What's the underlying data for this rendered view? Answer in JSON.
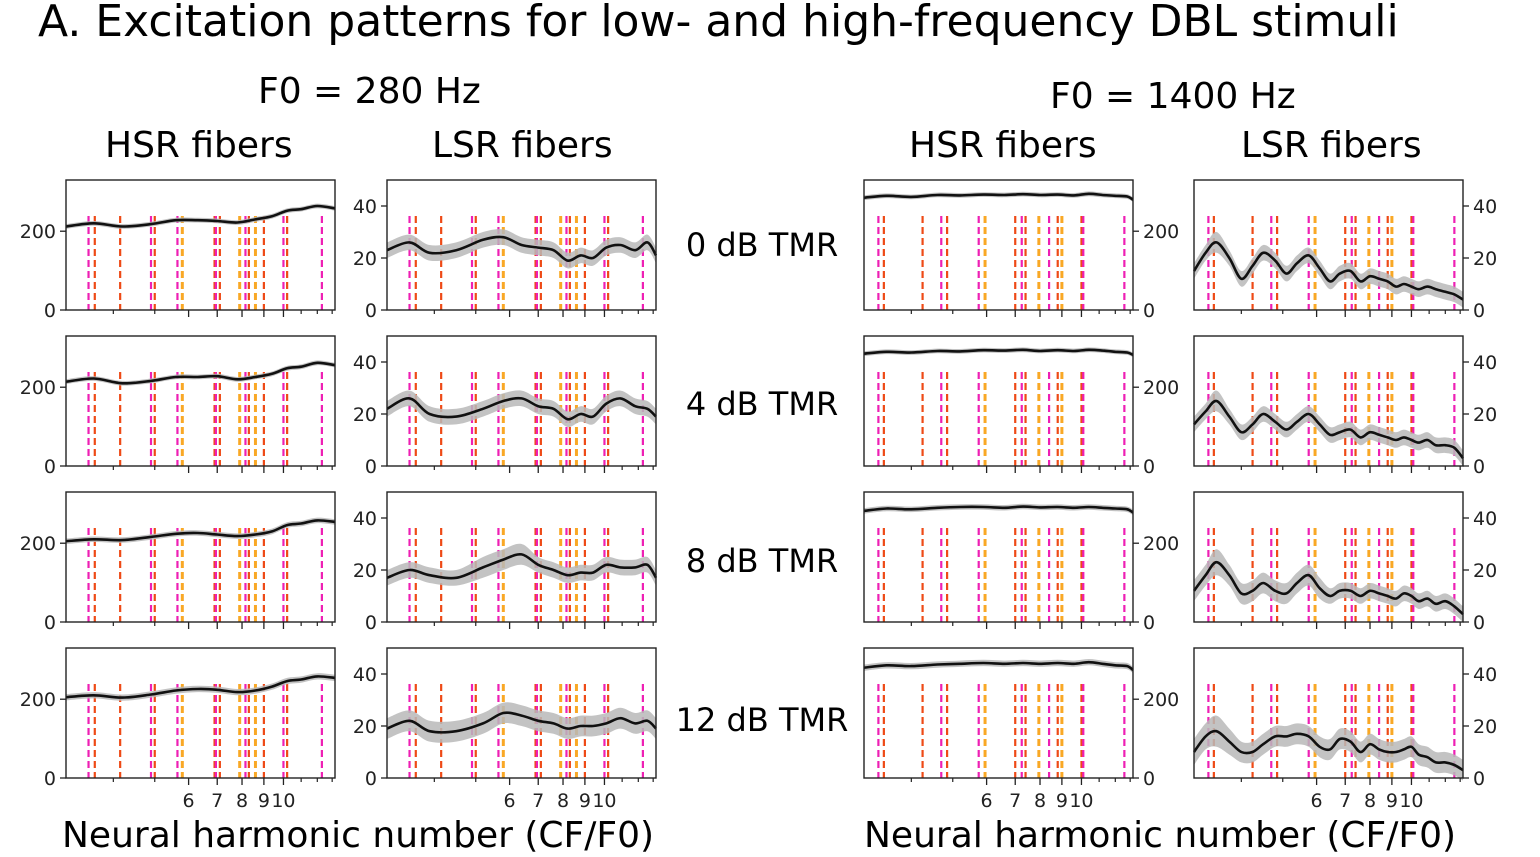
{
  "figure": {
    "title": "A. Excitation patterns for low- and high-frequency DBL stimuli",
    "groups": [
      {
        "f0_label": "F0 = 280 Hz",
        "hsr_label": "HSR fibers",
        "lsr_label": "LSR fibers",
        "xlabel": "Neural harmonic number (CF/F0)"
      },
      {
        "f0_label": "F0 = 1400 Hz",
        "hsr_label": "HSR fibers",
        "lsr_label": "LSR fibers",
        "xlabel": "Neural harmonic number (CF/F0)"
      }
    ],
    "rows": [
      "0 dB TMR",
      "4 dB TMR",
      "8 dB TMR",
      "12 dB TMR"
    ]
  },
  "chart_data": {
    "type": "line",
    "x_scale": "log",
    "x_domain": [
      3.1,
      13.2
    ],
    "x_tick_labels": [
      {
        "value": 6,
        "label": "6"
      },
      {
        "value": 7,
        "label": "7"
      },
      {
        "value": 8,
        "label": "8"
      },
      {
        "value": 9,
        "label": "9"
      },
      {
        "value": 10,
        "label": "10"
      }
    ],
    "hsr_axis": {
      "ylim": [
        0,
        330
      ],
      "ticks": [
        0,
        200
      ]
    },
    "lsr_axis": {
      "ylim": [
        0,
        50
      ],
      "ticks": [
        0,
        20,
        40
      ]
    },
    "marker_colors": {
      "target": "#ee1fb4",
      "masker": "#ee4a16",
      "shared": "#f9a825"
    },
    "harmonic_markers_280": {
      "target": [
        3.5,
        4.9,
        5.65,
        6.95,
        8.15,
        10.0,
        12.3
      ],
      "masker": [
        3.62,
        4.15,
        5.0,
        6.9,
        7.1,
        8.3,
        9.0,
        10.2
      ],
      "shared": [
        5.8,
        7.9,
        8.6
      ]
    },
    "harmonic_markers_1400": {
      "target": [
        3.35,
        4.7,
        5.75,
        7.25,
        8.4,
        10.1,
        12.6
      ],
      "masker": [
        3.45,
        4.25,
        4.85,
        7.0,
        7.4,
        8.8,
        10.0
      ],
      "shared": [
        5.95,
        7.95,
        9.0
      ]
    },
    "panels": [
      {
        "group": "F0 = 280 Hz",
        "fibers": "HSR",
        "row": "0 dB TMR",
        "x": [
          3.1,
          3.6,
          4.2,
          4.9,
          5.6,
          6.3,
          7.0,
          7.8,
          8.6,
          9.4,
          10.2,
          11.0,
          12.0,
          13.2
        ],
        "y": [
          212,
          220,
          212,
          218,
          228,
          228,
          226,
          222,
          230,
          238,
          252,
          256,
          264,
          258
        ],
        "band": [
          6,
          6,
          6,
          6,
          6,
          6,
          6,
          6,
          6,
          6,
          6,
          6,
          6,
          6
        ]
      },
      {
        "group": "F0 = 280 Hz",
        "fibers": "LSR",
        "row": "0 dB TMR",
        "x": [
          3.1,
          3.5,
          3.9,
          4.5,
          5.2,
          5.8,
          6.4,
          7.0,
          7.6,
          8.2,
          8.8,
          9.4,
          10.1,
          10.9,
          11.8,
          12.6,
          13.2
        ],
        "y": [
          23,
          26,
          22,
          23,
          27,
          28,
          25,
          24,
          23,
          19,
          21,
          20,
          24,
          25,
          23,
          26,
          21
        ],
        "band": [
          3,
          3,
          3,
          3,
          3,
          3,
          3,
          3,
          3,
          3,
          3,
          3,
          3,
          3,
          3,
          3,
          3
        ]
      },
      {
        "group": "F0 = 1400 Hz",
        "fibers": "HSR",
        "row": "0 dB TMR",
        "x": [
          3.1,
          3.5,
          4.0,
          4.6,
          5.2,
          5.9,
          6.6,
          7.3,
          8.0,
          8.8,
          9.6,
          10.4,
          11.2,
          12.0,
          12.8,
          13.2
        ],
        "y": [
          285,
          290,
          287,
          292,
          291,
          293,
          292,
          294,
          292,
          293,
          291,
          295,
          292,
          290,
          288,
          280
        ],
        "band": [
          6,
          6,
          6,
          6,
          6,
          6,
          6,
          6,
          6,
          6,
          6,
          6,
          6,
          6,
          6,
          6
        ]
      },
      {
        "group": "F0 = 1400 Hz",
        "fibers": "LSR",
        "row": "0 dB TMR",
        "x": [
          3.1,
          3.3,
          3.5,
          3.75,
          4.0,
          4.25,
          4.5,
          4.8,
          5.1,
          5.4,
          5.75,
          6.1,
          6.45,
          6.8,
          7.2,
          7.6,
          8.0,
          8.4,
          8.8,
          9.2,
          9.6,
          10.0,
          10.4,
          10.9,
          11.4,
          12.0,
          12.6,
          13.2
        ],
        "y": [
          15,
          22,
          26,
          20,
          12,
          17,
          22,
          19,
          14,
          18,
          21,
          16,
          11,
          14,
          15,
          11,
          13,
          12,
          11,
          9,
          10,
          9,
          8,
          9,
          8,
          7,
          6,
          4
        ],
        "band": [
          3,
          3,
          4,
          3,
          3,
          3,
          3,
          3,
          3,
          3,
          3,
          3,
          3,
          3,
          3,
          3,
          3,
          3,
          3,
          3,
          3,
          3,
          3,
          3,
          3,
          3,
          3,
          3
        ]
      },
      {
        "group": "F0 = 280 Hz",
        "fibers": "HSR",
        "row": "4 dB TMR",
        "x": [
          3.1,
          3.6,
          4.2,
          4.9,
          5.6,
          6.3,
          7.0,
          7.8,
          8.6,
          9.4,
          10.2,
          11.0,
          12.0,
          13.2
        ],
        "y": [
          214,
          222,
          210,
          216,
          226,
          226,
          228,
          220,
          226,
          234,
          248,
          252,
          262,
          256
        ],
        "band": [
          6,
          6,
          6,
          6,
          6,
          6,
          6,
          6,
          6,
          6,
          6,
          6,
          6,
          6
        ]
      },
      {
        "group": "F0 = 280 Hz",
        "fibers": "LSR",
        "row": "4 dB TMR",
        "x": [
          3.1,
          3.5,
          3.9,
          4.5,
          5.2,
          5.8,
          6.4,
          7.0,
          7.6,
          8.2,
          8.8,
          9.4,
          10.1,
          10.9,
          11.8,
          12.6,
          13.2
        ],
        "y": [
          22,
          26,
          20,
          19,
          22,
          25,
          26,
          23,
          22,
          18,
          20,
          19,
          24,
          26,
          23,
          22,
          19
        ],
        "band": [
          3,
          3,
          3,
          3,
          3,
          3,
          3,
          3,
          3,
          3,
          3,
          3,
          3,
          3,
          3,
          3,
          3
        ]
      },
      {
        "group": "F0 = 1400 Hz",
        "fibers": "HSR",
        "row": "4 dB TMR",
        "x": [
          3.1,
          3.5,
          4.0,
          4.6,
          5.2,
          5.9,
          6.6,
          7.3,
          8.0,
          8.8,
          9.6,
          10.4,
          11.2,
          12.0,
          12.8,
          13.2
        ],
        "y": [
          285,
          290,
          288,
          292,
          291,
          294,
          293,
          295,
          292,
          294,
          292,
          295,
          293,
          290,
          288,
          282
        ],
        "band": [
          6,
          6,
          6,
          6,
          6,
          6,
          6,
          6,
          6,
          6,
          6,
          6,
          6,
          6,
          6,
          6
        ]
      },
      {
        "group": "F0 = 1400 Hz",
        "fibers": "LSR",
        "row": "4 dB TMR",
        "x": [
          3.1,
          3.3,
          3.5,
          3.75,
          4.0,
          4.25,
          4.5,
          4.8,
          5.1,
          5.4,
          5.75,
          6.1,
          6.45,
          6.8,
          7.2,
          7.6,
          8.0,
          8.4,
          8.8,
          9.2,
          9.6,
          10.0,
          10.4,
          10.9,
          11.4,
          12.0,
          12.6,
          13.2
        ],
        "y": [
          16,
          21,
          25,
          19,
          13,
          16,
          20,
          17,
          14,
          17,
          20,
          16,
          12,
          13,
          14,
          11,
          13,
          12,
          11,
          10,
          11,
          10,
          9,
          10,
          8,
          8,
          7,
          3
        ],
        "band": [
          3,
          3,
          4,
          3,
          3,
          3,
          3,
          3,
          3,
          3,
          3,
          3,
          3,
          3,
          3,
          3,
          3,
          3,
          3,
          3,
          3,
          3,
          3,
          3,
          3,
          3,
          3,
          3
        ]
      },
      {
        "group": "F0 = 280 Hz",
        "fibers": "HSR",
        "row": "8 dB TMR",
        "x": [
          3.1,
          3.6,
          4.2,
          4.9,
          5.6,
          6.3,
          7.0,
          7.8,
          8.6,
          9.4,
          10.2,
          11.0,
          12.0,
          13.2
        ],
        "y": [
          205,
          210,
          208,
          216,
          224,
          226,
          222,
          218,
          222,
          230,
          246,
          250,
          258,
          254
        ],
        "band": [
          7,
          7,
          7,
          7,
          7,
          7,
          7,
          7,
          7,
          7,
          7,
          7,
          7,
          7
        ]
      },
      {
        "group": "F0 = 280 Hz",
        "fibers": "LSR",
        "row": "8 dB TMR",
        "x": [
          3.1,
          3.5,
          3.9,
          4.5,
          5.2,
          5.8,
          6.4,
          7.0,
          7.6,
          8.2,
          8.8,
          9.4,
          10.1,
          10.9,
          11.8,
          12.6,
          13.2
        ],
        "y": [
          17,
          20,
          18,
          17,
          21,
          24,
          26,
          22,
          20,
          18,
          19,
          19,
          22,
          21,
          21,
          22,
          17
        ],
        "band": [
          3,
          3,
          3,
          3,
          4,
          4,
          4,
          3,
          3,
          3,
          3,
          3,
          3,
          3,
          3,
          3,
          3
        ]
      },
      {
        "group": "F0 = 1400 Hz",
        "fibers": "HSR",
        "row": "8 dB TMR",
        "x": [
          3.1,
          3.5,
          4.0,
          4.6,
          5.2,
          5.9,
          6.6,
          7.3,
          8.0,
          8.8,
          9.6,
          10.4,
          11.2,
          12.0,
          12.8,
          13.2
        ],
        "y": [
          282,
          288,
          286,
          290,
          292,
          292,
          290,
          293,
          291,
          292,
          290,
          292,
          290,
          288,
          286,
          278
        ],
        "band": [
          7,
          7,
          7,
          7,
          7,
          7,
          7,
          7,
          7,
          7,
          7,
          7,
          7,
          7,
          7,
          7
        ]
      },
      {
        "group": "F0 = 1400 Hz",
        "fibers": "LSR",
        "row": "8 dB TMR",
        "x": [
          3.1,
          3.3,
          3.5,
          3.75,
          4.0,
          4.25,
          4.5,
          4.8,
          5.1,
          5.4,
          5.75,
          6.1,
          6.45,
          6.8,
          7.2,
          7.6,
          8.0,
          8.4,
          8.8,
          9.2,
          9.6,
          10.0,
          10.4,
          10.9,
          11.4,
          12.0,
          12.6,
          13.2
        ],
        "y": [
          12,
          18,
          23,
          18,
          11,
          12,
          15,
          12,
          11,
          15,
          18,
          13,
          10,
          12,
          12,
          10,
          12,
          11,
          10,
          9,
          11,
          10,
          8,
          9,
          7,
          8,
          6,
          3
        ],
        "band": [
          4,
          4,
          5,
          4,
          4,
          4,
          4,
          4,
          4,
          4,
          4,
          4,
          3,
          3,
          3,
          3,
          3,
          3,
          3,
          3,
          3,
          3,
          3,
          3,
          3,
          3,
          3,
          3
        ]
      },
      {
        "group": "F0 = 280 Hz",
        "fibers": "HSR",
        "row": "12 dB TMR",
        "x": [
          3.1,
          3.6,
          4.2,
          4.9,
          5.6,
          6.3,
          7.0,
          7.8,
          8.6,
          9.4,
          10.2,
          11.0,
          12.0,
          13.2
        ],
        "y": [
          205,
          210,
          204,
          212,
          222,
          226,
          224,
          218,
          222,
          232,
          246,
          250,
          258,
          254
        ],
        "band": [
          8,
          8,
          8,
          8,
          8,
          8,
          8,
          8,
          8,
          8,
          8,
          8,
          8,
          8
        ]
      },
      {
        "group": "F0 = 280 Hz",
        "fibers": "LSR",
        "row": "12 dB TMR",
        "x": [
          3.1,
          3.5,
          3.9,
          4.5,
          5.2,
          5.8,
          6.4,
          7.0,
          7.6,
          8.2,
          8.8,
          9.4,
          10.1,
          10.9,
          11.8,
          12.6,
          13.2
        ],
        "y": [
          19,
          22,
          18,
          18,
          21,
          25,
          24,
          22,
          21,
          19,
          20,
          20,
          21,
          23,
          21,
          22,
          19
        ],
        "band": [
          4,
          4,
          4,
          4,
          4,
          4,
          4,
          4,
          4,
          4,
          4,
          4,
          4,
          4,
          4,
          4,
          4
        ]
      },
      {
        "group": "F0 = 1400 Hz",
        "fibers": "HSR",
        "row": "12 dB TMR",
        "x": [
          3.1,
          3.5,
          4.0,
          4.6,
          5.2,
          5.9,
          6.6,
          7.3,
          8.0,
          8.8,
          9.6,
          10.4,
          11.2,
          12.0,
          12.8,
          13.2
        ],
        "y": [
          280,
          286,
          284,
          288,
          290,
          292,
          290,
          292,
          290,
          292,
          290,
          294,
          290,
          286,
          284,
          274
        ],
        "band": [
          8,
          8,
          8,
          8,
          8,
          8,
          8,
          8,
          8,
          8,
          8,
          8,
          8,
          8,
          8,
          8
        ]
      },
      {
        "group": "F0 = 1400 Hz",
        "fibers": "LSR",
        "row": "12 dB TMR",
        "x": [
          3.1,
          3.3,
          3.5,
          3.75,
          4.0,
          4.25,
          4.5,
          4.8,
          5.1,
          5.4,
          5.75,
          6.1,
          6.45,
          6.8,
          7.2,
          7.6,
          8.0,
          8.4,
          8.8,
          9.2,
          9.6,
          10.0,
          10.4,
          10.9,
          11.4,
          12.0,
          12.6,
          13.2
        ],
        "y": [
          10,
          16,
          18,
          14,
          10,
          10,
          13,
          16,
          16,
          17,
          16,
          12,
          11,
          15,
          14,
          10,
          13,
          11,
          10,
          10,
          11,
          12,
          9,
          8,
          6,
          6,
          5,
          3
        ],
        "band": [
          5,
          5,
          6,
          5,
          4,
          4,
          4,
          4,
          4,
          4,
          4,
          4,
          4,
          4,
          4,
          4,
          4,
          4,
          4,
          4,
          4,
          4,
          4,
          4,
          4,
          4,
          4,
          4
        ]
      }
    ]
  }
}
